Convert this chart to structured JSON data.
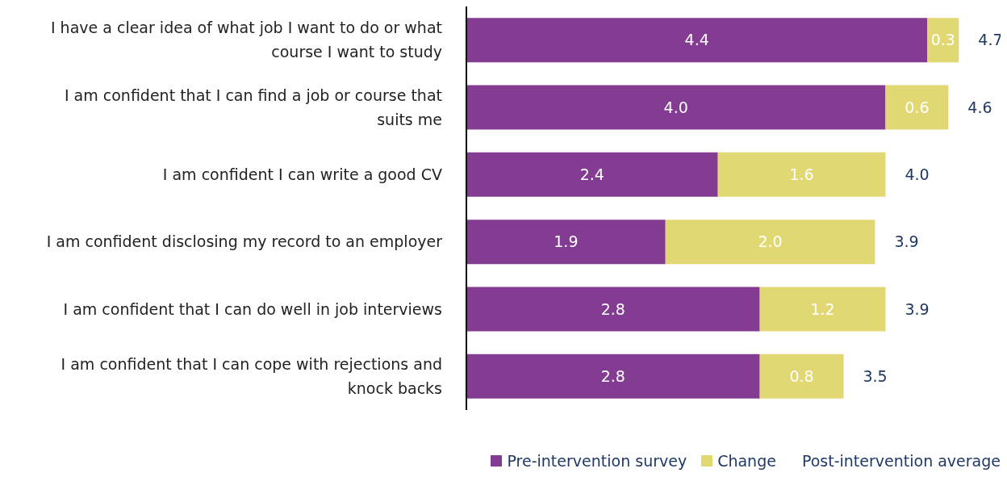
{
  "chart_data": {
    "type": "bar",
    "orientation": "horizontal",
    "stacked": true,
    "categories": [
      "I have a clear idea of what job I want to do or what course I want to study",
      "I am confident that I can find a job or course that suits me",
      "I am confident I can write a good CV",
      "I am confident disclosing my record to an employer",
      "I am confident that I can do well in job interviews",
      "I am confident that I can cope with rejections and knock backs"
    ],
    "series": [
      {
        "name": "Pre-intervention survey",
        "color": "#833c91",
        "values": [
          4.4,
          4.0,
          2.4,
          1.9,
          2.8,
          2.8
        ],
        "value_labels": [
          "4.4",
          "4.0",
          "2.4",
          "1.9",
          "2.8",
          "2.8"
        ]
      },
      {
        "name": "Change",
        "color": "#e2d873",
        "values": [
          0.3,
          0.6,
          1.6,
          2.0,
          1.2,
          0.8
        ],
        "value_labels": [
          "0.3",
          "0.6",
          "1.6",
          "2.0",
          "1.2",
          "0.8"
        ]
      }
    ],
    "totals": [
      "4.7",
      "4.6",
      "4.0",
      "3.9",
      "3.9",
      "3.5"
    ],
    "annotations": [
      "Post-intervention average"
    ],
    "legend": "bottom"
  }
}
